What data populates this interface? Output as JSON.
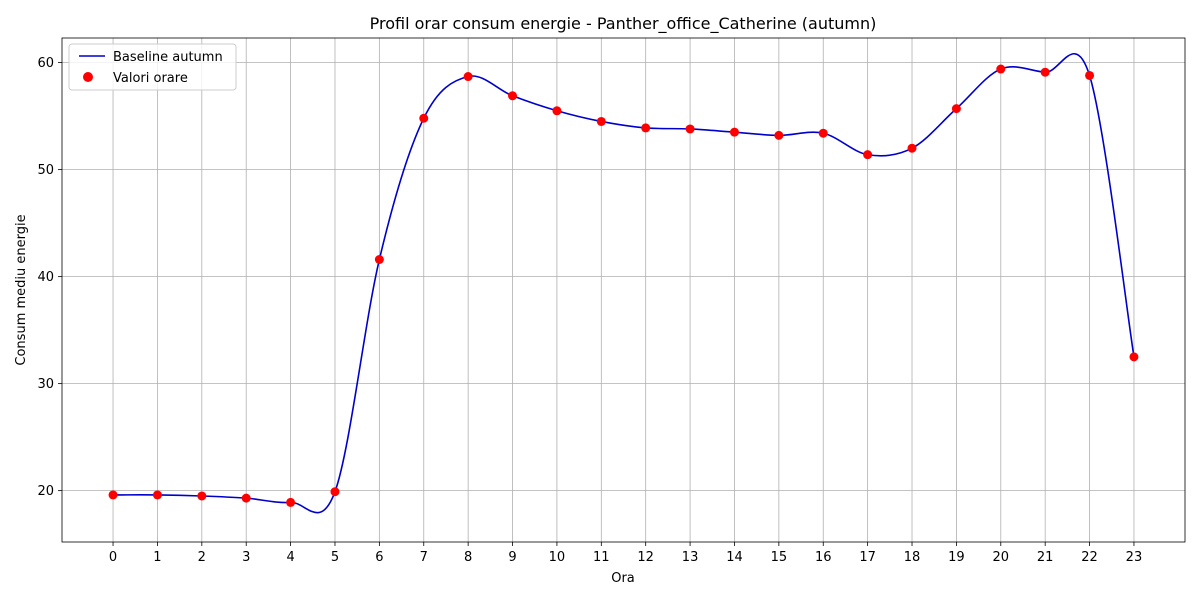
{
  "chart_data": {
    "type": "line",
    "title": "Profil orar consum energie - Panther_office_Catherine (autumn)",
    "xlabel": "Ora",
    "ylabel": "Consum mediu energie",
    "x": [
      0,
      1,
      2,
      3,
      4,
      5,
      6,
      7,
      8,
      9,
      10,
      11,
      12,
      13,
      14,
      15,
      16,
      17,
      18,
      19,
      20,
      21,
      22,
      23
    ],
    "series": [
      {
        "name": "Baseline autumn",
        "kind": "line",
        "color": "#0000cc",
        "values": [
          19.6,
          19.6,
          19.5,
          19.3,
          18.9,
          19.9,
          41.6,
          54.8,
          58.7,
          56.9,
          55.5,
          54.5,
          53.9,
          53.8,
          53.5,
          53.2,
          53.4,
          51.4,
          52.0,
          55.7,
          59.4,
          59.1,
          58.8,
          32.5
        ]
      },
      {
        "name": "Valori orare",
        "kind": "scatter",
        "color": "#ff0000",
        "values": [
          19.6,
          19.6,
          19.5,
          19.3,
          18.9,
          19.9,
          41.6,
          54.8,
          58.7,
          56.9,
          55.5,
          54.5,
          53.9,
          53.8,
          53.5,
          53.2,
          53.4,
          51.4,
          52.0,
          55.7,
          59.4,
          59.1,
          58.8,
          32.5
        ]
      }
    ],
    "xlim": [
      -1.15,
      24.15
    ],
    "ylim": [
      15.2,
      62.3
    ],
    "yticks": [
      20,
      30,
      40,
      50,
      60
    ],
    "xticks": [
      0,
      1,
      2,
      3,
      4,
      5,
      6,
      7,
      8,
      9,
      10,
      11,
      12,
      13,
      14,
      15,
      16,
      17,
      18,
      19,
      20,
      21,
      22,
      23
    ],
    "grid": true,
    "legend_position": "top-left"
  }
}
